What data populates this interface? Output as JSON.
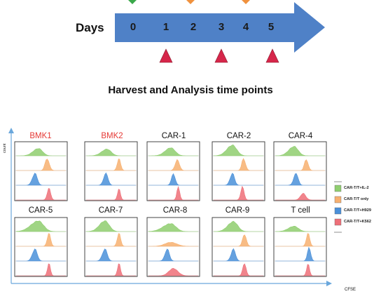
{
  "timeline": {
    "label": "Days",
    "days": [
      "0",
      "1",
      "2",
      "3",
      "4",
      "5"
    ],
    "colors": {
      "arrow": "#4f81c7",
      "start_marker": "#3aa84a",
      "treatment_marker": "#f0913d",
      "harvest_marker": "#d6264a"
    }
  },
  "harvest_title": "Harvest and Analysis time points",
  "axes": {
    "y_label": "count",
    "x_label": "CFSE"
  },
  "panels": [
    {
      "title": "BMK1",
      "title_color": "#e53935"
    },
    {
      "title": "BMK2",
      "title_color": "#e53935"
    },
    {
      "title": "CAR-1",
      "title_color": "#111111"
    },
    {
      "title": "CAR-2",
      "title_color": "#111111"
    },
    {
      "title": "CAR-4",
      "title_color": "#111111"
    },
    {
      "title": "CAR-5",
      "title_color": "#111111"
    },
    {
      "title": "CAR-7",
      "title_color": "#111111"
    },
    {
      "title": "CAR-8",
      "title_color": "#111111"
    },
    {
      "title": "CAR-9",
      "title_color": "#111111"
    },
    {
      "title": "T cell",
      "title_color": "#111111"
    }
  ],
  "legend": [
    {
      "label": "CAR-T/T+IL-2",
      "color": "#8fce6f"
    },
    {
      "label": "CAR-T/T only",
      "color": "#f7b070"
    },
    {
      "label": "CAR-T/T+H929",
      "color": "#4a90d9"
    },
    {
      "label": "CAR-T/T+K562",
      "color": "#ee6f78"
    }
  ]
}
